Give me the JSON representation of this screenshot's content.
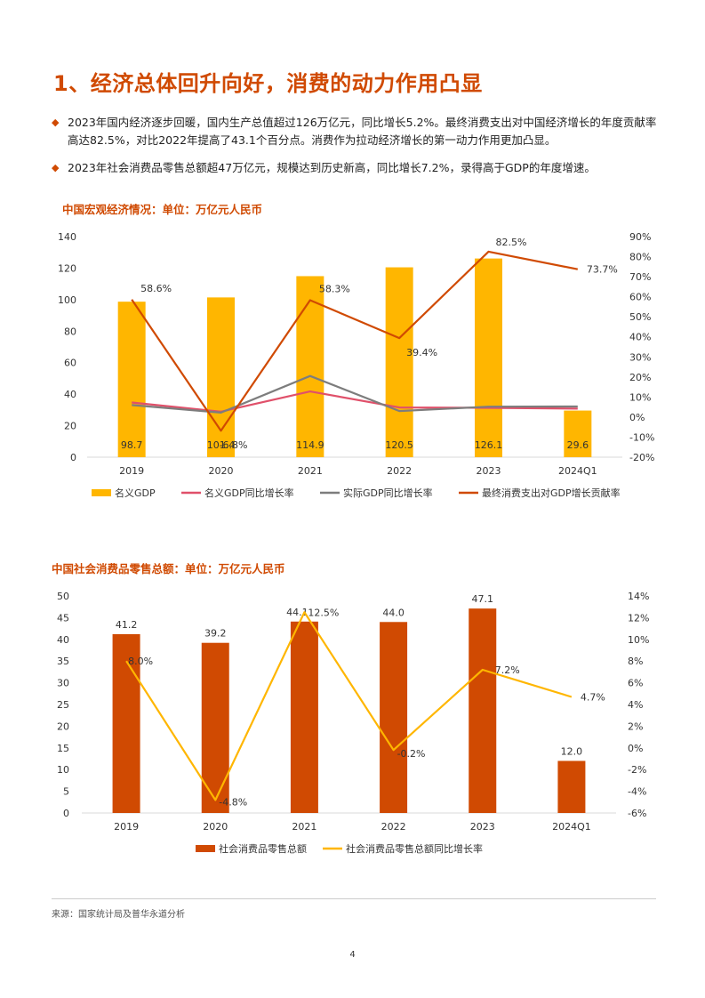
{
  "page": {
    "title": "1、经济总体回升向好，消费的动力作用凸显",
    "bullets": [
      "2023年国内经济逐步回暖，国内生产总值超过126万亿元，同比增长5.2%。最终消费支出对中国经济增长的年度贡献率高达82.5%，对比2022年提高了43.1个百分点。消费作为拉动经济增长的第一动力作用更加凸显。",
      "2023年社会消费品零售总额超47万亿元，规模达到历史新高，同比增长7.2%，录得高于GDP的年度增速。"
    ],
    "source": "来源：国家统计局及普华永道分析",
    "page_number": "4",
    "colors": {
      "accent": "#d04a02",
      "gold": "#ffb600",
      "rose": "#e0506a",
      "gray": "#7d7d7d",
      "orange_bar": "#d04a02",
      "yellow_line": "#ffb600"
    }
  },
  "chart_data": [
    {
      "type": "bar",
      "title": "中国宏观经济情况：单位：万亿元人民币",
      "categories": [
        "2019",
        "2020",
        "2021",
        "2022",
        "2023",
        "2024Q1"
      ],
      "ylim": [
        0,
        140
      ],
      "yticks": [
        0,
        20,
        40,
        60,
        80,
        100,
        120,
        140
      ],
      "y2lim": [
        -20,
        90
      ],
      "y2ticks": [
        -20,
        -10,
        0,
        10,
        20,
        30,
        40,
        50,
        60,
        70,
        80,
        90
      ],
      "y2_suffix": "%",
      "series": [
        {
          "name": "名义GDP",
          "type": "bar",
          "axis": "left",
          "color": "#ffb600",
          "values": [
            98.7,
            101.4,
            114.9,
            120.5,
            126.1,
            29.6
          ],
          "labels": [
            "98.7",
            "101.4",
            "114.9",
            "120.5",
            "126.1",
            "29.6"
          ]
        },
        {
          "name": "名义GDP同比增长率",
          "type": "line",
          "axis": "right",
          "color": "#e0506a",
          "values": [
            7.3,
            2.7,
            12.8,
            4.8,
            4.6,
            4.2
          ]
        },
        {
          "name": "实际GDP同比增长率",
          "type": "line",
          "axis": "right",
          "color": "#7d7d7d",
          "values": [
            6.0,
            2.2,
            20.5,
            3.0,
            5.2,
            5.3
          ]
        },
        {
          "name": "最终消费支出对GDP增长贡献率",
          "type": "line",
          "axis": "right",
          "color": "#d04a02",
          "values": [
            58.6,
            -6.8,
            58.3,
            39.4,
            82.5,
            73.7
          ],
          "labels": [
            "58.6%",
            "-6.8%",
            "58.3%",
            "39.4%",
            "82.5%",
            "73.7%"
          ]
        }
      ],
      "legend": "bottom"
    },
    {
      "type": "bar",
      "title": "中国社会消费品零售总额：单位：万亿元人民币",
      "categories": [
        "2019",
        "2020",
        "2021",
        "2022",
        "2023",
        "2024Q1"
      ],
      "ylim": [
        0,
        50
      ],
      "yticks": [
        0,
        5,
        10,
        15,
        20,
        25,
        30,
        35,
        40,
        45,
        50
      ],
      "y2lim": [
        -6,
        14
      ],
      "y2ticks": [
        -6,
        -4,
        -2,
        0,
        2,
        4,
        6,
        8,
        10,
        12,
        14
      ],
      "y2_suffix": "%",
      "series": [
        {
          "name": "社会消费品零售总额",
          "type": "bar",
          "axis": "left",
          "color": "#d04a02",
          "values": [
            41.2,
            39.2,
            44.1,
            44.0,
            47.1,
            12.0
          ],
          "labels": [
            "41.2",
            "39.2",
            "44.1",
            "44.0",
            "47.1",
            "12.0"
          ]
        },
        {
          "name": "社会消费品零售总额同比增长率",
          "type": "line",
          "axis": "right",
          "color": "#ffb600",
          "values": [
            8.0,
            -4.8,
            12.5,
            -0.2,
            7.2,
            4.7
          ],
          "labels": [
            "8.0%",
            "-4.8%",
            "12.5%",
            "-0.2%",
            "7.2%",
            "4.7%"
          ]
        }
      ],
      "legend": "bottom"
    }
  ]
}
